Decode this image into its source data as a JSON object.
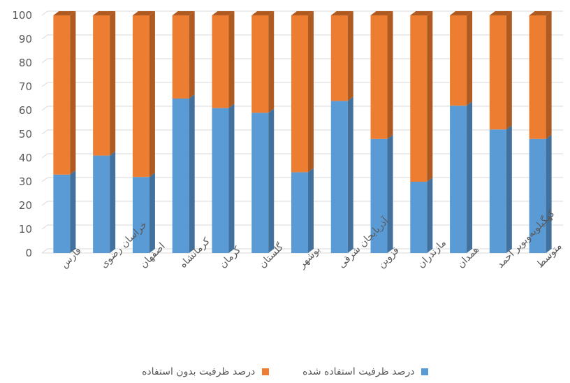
{
  "chart_data": {
    "type": "bar",
    "stacked": true,
    "three_d": true,
    "ylim": [
      0,
      100
    ],
    "yticks": [
      "0",
      "10",
      "20",
      "30",
      "40",
      "50",
      "60",
      "70",
      "80",
      "90",
      "100"
    ],
    "grid": true,
    "legend_position": "bottom",
    "categories": [
      "فارس",
      "خراسان رضوی",
      "اصفهان",
      "کرمانشاه",
      "کرمان",
      "گلستان",
      "بوشهر",
      "آذربایجان شرقی",
      "قزوین",
      "مازندران",
      "همدان",
      "کهگیلویه‌وبویر احمد",
      "متوسط"
    ],
    "series": [
      {
        "name": "درصد ظرفیت استفاده شده",
        "color": "#5b9bd5",
        "side": "#41719c",
        "values": [
          33,
          41,
          32,
          65,
          61,
          59,
          34,
          64,
          48,
          30,
          62,
          52,
          48
        ]
      },
      {
        "name": "درصد ظرفیت بدون استفاده",
        "color": "#ed7d31",
        "side": "#ae5a21",
        "values": [
          67,
          59,
          68,
          35,
          39,
          41,
          66,
          36,
          52,
          70,
          38,
          48,
          52
        ]
      }
    ]
  }
}
